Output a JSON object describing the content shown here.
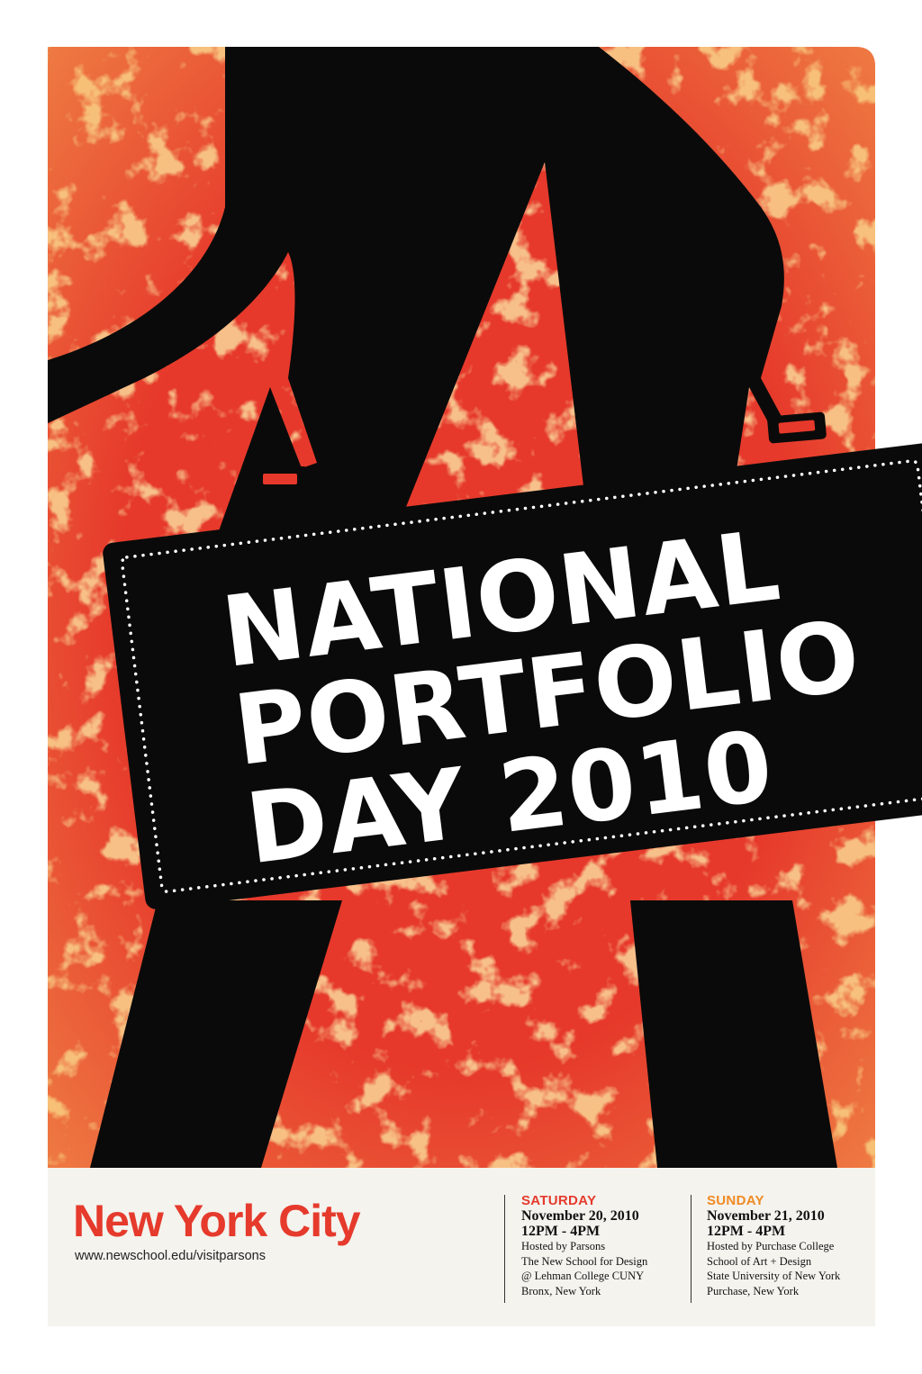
{
  "poster": {
    "title_lines": [
      "NATIONAL",
      "PORTFOLIO",
      "DAY 2010"
    ],
    "city": "New York City",
    "url": "www.newschool.edu/visitparsons",
    "colors": {
      "background_red": "#e6392b",
      "grunge_yellow": "#f7c15c",
      "silhouette": "#0a0a0a",
      "footer_bg": "#f4f3ee",
      "city_red": "#e53a2c",
      "saturday_red": "#e53a2c",
      "sunday_orange": "#f08a24"
    }
  },
  "events": [
    {
      "day": "SATURDAY",
      "date": "November 20, 2010",
      "time": "12PM - 4PM",
      "details": [
        "Hosted by Parsons",
        "The New School for Design",
        "@ Lehman College CUNY",
        "Bronx, New York"
      ]
    },
    {
      "day": "SUNDAY",
      "date": "November 21, 2010",
      "time": "12PM - 4PM",
      "details": [
        "Hosted by Purchase College",
        "School of Art + Design",
        "State University of New York",
        "Purchase, New York"
      ]
    }
  ]
}
